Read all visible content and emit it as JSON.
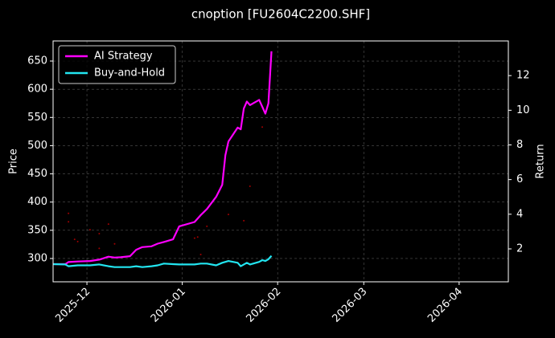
{
  "chart_data": {
    "type": "line",
    "title": "cnoption [FU2604C2200.SHF]",
    "ylabel": "Price",
    "y2label": "Return",
    "xlim": [
      "2025-11-20",
      "2026-04-17"
    ],
    "xticks": [
      {
        "value": "2025-12-01",
        "label": "2025-12"
      },
      {
        "value": "2026-01-01",
        "label": "2026-01"
      },
      {
        "value": "2026-02-01",
        "label": "2026-02"
      },
      {
        "value": "2026-03-01",
        "label": "2026-03"
      },
      {
        "value": "2026-04-01",
        "label": "2026-04"
      }
    ],
    "ylim": [
      258.7,
      685.6
    ],
    "yticks": [
      300,
      350,
      400,
      450,
      500,
      550,
      600,
      650
    ],
    "y2lim": [
      0.1,
      14
    ],
    "y2ticks": [
      2,
      4,
      6,
      8,
      10,
      12
    ],
    "grid": true,
    "legend": "upper left",
    "x": [
      "2025-11-20",
      "2025-11-24",
      "2025-11-25",
      "2025-11-28",
      "2025-12-02",
      "2025-12-05",
      "2025-12-08",
      "2025-12-10",
      "2025-12-12",
      "2025-12-15",
      "2025-12-17",
      "2025-12-19",
      "2025-12-22",
      "2025-12-24",
      "2025-12-26",
      "2025-12-29",
      "2025-12-31",
      "2026-01-05",
      "2026-01-07",
      "2026-01-09",
      "2026-01-12",
      "2026-01-14",
      "2026-01-15",
      "2026-01-16",
      "2026-01-19",
      "2026-01-20",
      "2026-01-21",
      "2026-01-22",
      "2026-01-23",
      "2026-01-26",
      "2026-01-27",
      "2026-01-28",
      "2026-01-29",
      "2026-01-30"
    ],
    "series": [
      {
        "name": "AI Strategy",
        "color": "#ff00ff",
        "axis": "y2",
        "values": [
          1.12,
          1.12,
          1.24,
          1.27,
          1.3,
          1.38,
          1.55,
          1.5,
          1.52,
          1.58,
          1.95,
          2.1,
          2.15,
          2.3,
          2.4,
          2.55,
          3.3,
          3.55,
          3.95,
          4.3,
          5.0,
          5.7,
          7.4,
          8.2,
          9.0,
          8.9,
          10.1,
          10.5,
          10.3,
          10.6,
          10.2,
          9.8,
          10.4,
          13.4
        ]
      },
      {
        "name": "Buy-and-Hold",
        "color": "#22e5f0",
        "axis": "y2",
        "values": [
          1.12,
          1.1,
          1.0,
          1.05,
          1.05,
          1.1,
          1.0,
          0.95,
          0.95,
          0.95,
          1.0,
          0.95,
          1.0,
          1.05,
          1.15,
          1.12,
          1.1,
          1.1,
          1.15,
          1.15,
          1.05,
          1.2,
          1.25,
          1.3,
          1.2,
          1.0,
          1.1,
          1.2,
          1.1,
          1.25,
          1.35,
          1.3,
          1.4,
          1.6
        ]
      }
    ],
    "scatter": {
      "color": "#a00000",
      "x": [
        "2025-11-25",
        "2025-11-25",
        "2025-11-27",
        "2025-11-28",
        "2025-12-02",
        "2025-12-05",
        "2025-12-05",
        "2025-12-08",
        "2025-12-10",
        "2026-01-05",
        "2026-01-06",
        "2026-01-07",
        "2026-01-09",
        "2026-01-16",
        "2026-01-21",
        "2026-01-23",
        "2026-01-27"
      ],
      "values": [
        365,
        380,
        334,
        330,
        351,
        318,
        344,
        361,
        326,
        336,
        338,
        307,
        357,
        378,
        367,
        428,
        533
      ]
    }
  }
}
